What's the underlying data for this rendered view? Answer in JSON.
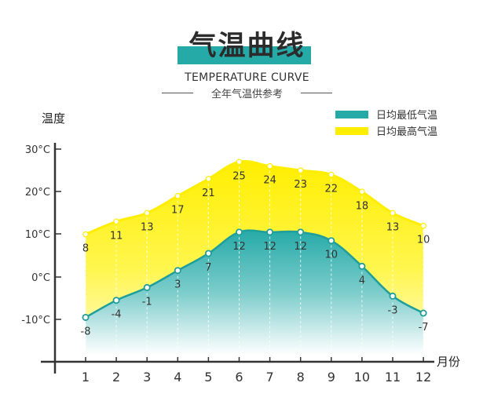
{
  "header": {
    "title": "气温曲线",
    "subtitle_en": "TEMPERATURE CURVE",
    "subtitle_cn": "全年气温供参考"
  },
  "legend": [
    {
      "label": "日均最低气温",
      "color": "#26aaa8"
    },
    {
      "label": "日均最高气温",
      "color": "#ffee00"
    }
  ],
  "axes": {
    "ylabel": "温度",
    "xlabel": "月份",
    "yticks": [
      "30°C",
      "20°C",
      "10°C",
      "0°C",
      "-10°C"
    ],
    "xticks": [
      "1",
      "2",
      "3",
      "4",
      "5",
      "6",
      "7",
      "8",
      "9",
      "10",
      "11",
      "12"
    ]
  },
  "colors": {
    "teal": "#26aaa8",
    "yellow": "#ffee00",
    "axis": "#333333"
  },
  "chart_data": {
    "type": "area",
    "title": "气温曲线",
    "subtitle": "TEMPERATURE CURVE — 全年气温供参考",
    "xlabel": "月份",
    "ylabel": "温度",
    "categories": [
      "1",
      "2",
      "3",
      "4",
      "5",
      "6",
      "7",
      "8",
      "9",
      "10",
      "11",
      "12"
    ],
    "series": [
      {
        "name": "日均最高气温",
        "color": "#ffee00",
        "values": [
          8,
          11,
          13,
          17,
          21,
          25,
          24,
          23,
          22,
          18,
          13,
          10
        ]
      },
      {
        "name": "日均最低气温",
        "color": "#26aaa8",
        "values": [
          -8,
          -4,
          -1,
          3,
          7,
          12,
          12,
          12,
          10,
          4,
          -3,
          -7
        ]
      }
    ],
    "yticks": [
      "-10°C",
      "0°C",
      "10°C",
      "20°C",
      "30°C"
    ],
    "ylim": [
      -15,
      35
    ],
    "grid": false,
    "legend_position": "top-right"
  }
}
